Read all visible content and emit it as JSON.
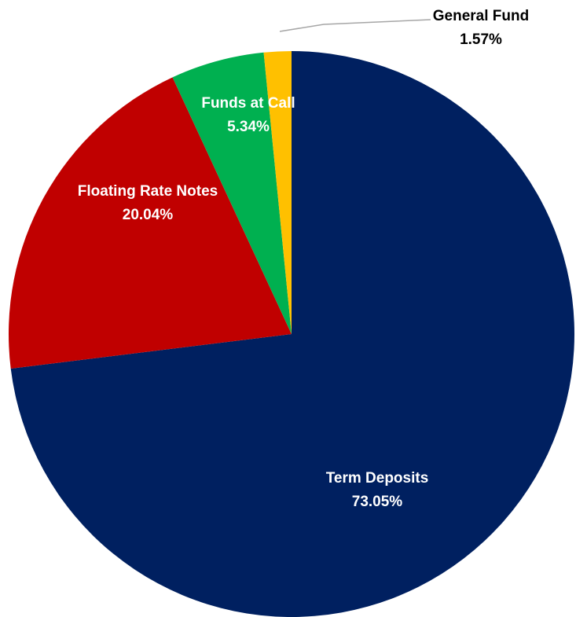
{
  "chart_data": {
    "type": "pie",
    "title": "",
    "series": [
      {
        "values": [
          73.05,
          20.04,
          5.34,
          1.57
        ]
      }
    ],
    "categories": [
      "Term Deposits",
      "Floating Rate Notes",
      "Funds at Call",
      "General Fund"
    ],
    "slices": [
      {
        "label": "Term Deposits",
        "value": 73.05,
        "value_label": "73.05%",
        "color": "#002060",
        "label_color": "#ffffff"
      },
      {
        "label": "Floating Rate Notes",
        "value": 20.04,
        "value_label": "20.04%",
        "color": "#C00000",
        "label_color": "#ffffff"
      },
      {
        "label": "Funds at Call",
        "value": 5.34,
        "value_label": "5.34%",
        "color": "#00B050",
        "label_color": "#ffffff"
      },
      {
        "label": "General Fund",
        "value": 1.57,
        "value_label": "1.57%",
        "color": "#FFC000",
        "label_color": "#000000"
      }
    ],
    "start": "12 o'clock",
    "direction": "clockwise",
    "legend": "none"
  }
}
